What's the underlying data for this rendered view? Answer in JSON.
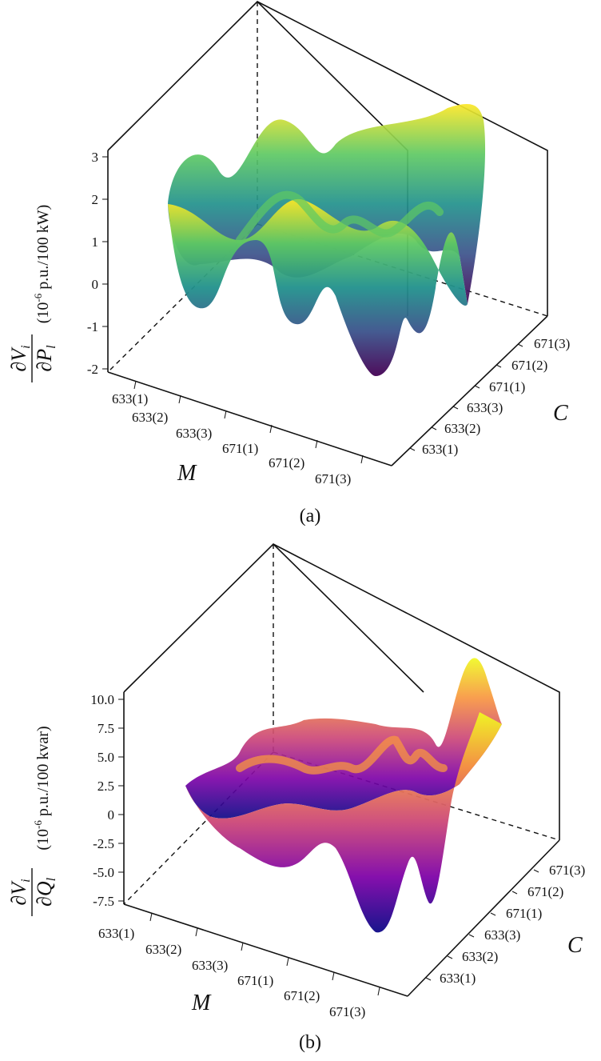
{
  "chart_data": [
    {
      "type": "surface",
      "caption": "(a)",
      "ylabel": "(10-6 p.u./100 kW)",
      "ylabel_prefix": "(10",
      "ylabel_exp": "-6",
      "ylabel_suffix": " p.u./100 kW)",
      "fraction_num": "∂V",
      "fraction_num_sub": "i",
      "fraction_den": "∂P",
      "fraction_den_sub": "l",
      "z_ticks": [
        "3",
        "2",
        "1",
        "0",
        "-1",
        "-2"
      ],
      "z_values": [
        3,
        2,
        1,
        0,
        -1,
        -2
      ],
      "zlim": [
        -2,
        3
      ],
      "x_axis_name": "M",
      "y_axis_name": "C",
      "x_ticks": [
        "633(1)",
        "633(2)",
        "633(3)",
        "671(1)",
        "671(2)",
        "671(3)"
      ],
      "y_ticks": [
        "633(1)",
        "633(2)",
        "633(3)",
        "671(1)",
        "671(2)",
        "671(3)"
      ],
      "colormap": "viridis",
      "surface_grid": [
        [
          0.0,
          0.2,
          0.8,
          1.5,
          1.0,
          -0.5
        ],
        [
          1.2,
          0.5,
          -1.0,
          2.0,
          0.6,
          -1.0
        ],
        [
          1.8,
          1.0,
          2.3,
          1.0,
          1.4,
          0.4
        ],
        [
          2.6,
          1.6,
          1.9,
          2.2,
          2.0,
          2.8
        ],
        [
          2.4,
          0.8,
          2.5,
          1.1,
          1.8,
          0.0
        ],
        [
          1.9,
          2.2,
          1.7,
          2.6,
          2.4,
          2.2
        ]
      ],
      "grid_values": "approximate z values, rows = M order, cols = C order"
    },
    {
      "type": "surface",
      "caption": "(b)",
      "ylabel": "(10-6 p.u./100 kvar)",
      "ylabel_prefix": "(10",
      "ylabel_exp": "-6",
      "ylabel_suffix": " p.u./100 kvar)",
      "fraction_num": "∂V",
      "fraction_num_sub": "i",
      "fraction_den": "∂Q",
      "fraction_den_sub": "l",
      "z_ticks": [
        "10.0",
        "7.5",
        "5.0",
        "2.5",
        "0",
        "-2.5",
        "-5.0",
        "-7.5"
      ],
      "z_values": [
        10.0,
        7.5,
        5.0,
        2.5,
        0,
        -2.5,
        -5.0,
        -7.5
      ],
      "zlim": [
        -7.5,
        10.0
      ],
      "x_axis_name": "M",
      "y_axis_name": "C",
      "x_ticks": [
        "633(1)",
        "633(2)",
        "633(3)",
        "671(1)",
        "671(2)",
        "671(3)"
      ],
      "y_ticks": [
        "633(1)",
        "633(2)",
        "633(3)",
        "671(1)",
        "671(2)",
        "671(3)"
      ],
      "colormap": "plasma",
      "surface_grid": [
        [
          0.5,
          1.0,
          2.0,
          1.5,
          -6.0,
          -4.0
        ],
        [
          2.5,
          -2.0,
          4.0,
          -5.5,
          2.0,
          1.0
        ],
        [
          1.0,
          3.0,
          2.0,
          4.5,
          2.0,
          9.0
        ],
        [
          -1.0,
          3.0,
          4.0,
          3.0,
          3.5,
          4.0
        ],
        [
          1.5,
          5.0,
          2.0,
          5.5,
          2.5,
          1.5
        ],
        [
          2.0,
          5.0,
          4.5,
          5.0,
          4.5,
          2.0
        ]
      ],
      "grid_values": "approximate z values, rows = M order, cols = C order"
    }
  ]
}
